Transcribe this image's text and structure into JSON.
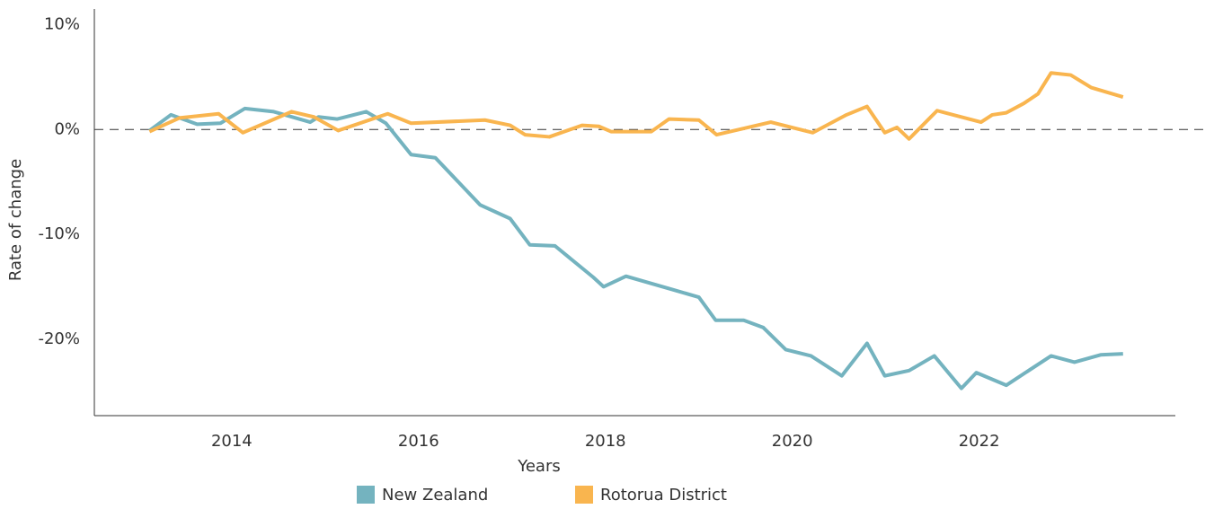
{
  "chart_data": {
    "type": "line",
    "xlabel": "Years",
    "ylabel": "Rate of change",
    "xlim": [
      2012.53,
      2024.1
    ],
    "xticks": [
      2014,
      2016,
      2018,
      2020,
      2022
    ],
    "ylim": [
      -27.3,
      11.5
    ],
    "yticks": [
      {
        "value": 10,
        "label": "10%"
      },
      {
        "value": 0,
        "label": "0%"
      },
      {
        "value": -10,
        "label": "-10%"
      },
      {
        "value": -20,
        "label": "-20%"
      }
    ],
    "zero_line": true,
    "series": [
      {
        "name": "New Zealand",
        "color": "#74b3bf",
        "x": [
          2013.12,
          2013.35,
          2013.63,
          2013.88,
          2014.14,
          2014.45,
          2014.84,
          2014.93,
          2015.13,
          2015.44,
          2015.65,
          2015.92,
          2016.18,
          2016.66,
          2016.98,
          2017.19,
          2017.46,
          2017.87,
          2017.98,
          2018.22,
          2018.73,
          2019.0,
          2019.18,
          2019.48,
          2019.69,
          2019.93,
          2020.2,
          2020.53,
          2020.8,
          2020.99,
          2021.25,
          2021.52,
          2021.81,
          2021.97,
          2022.29,
          2022.77,
          2023.02,
          2023.3,
          2023.54
        ],
        "values": [
          -0.1,
          1.4,
          0.5,
          0.6,
          2.0,
          1.7,
          0.7,
          1.2,
          1.0,
          1.7,
          0.6,
          -2.4,
          -2.7,
          -7.2,
          -8.5,
          -11.0,
          -11.1,
          -14.1,
          -15.0,
          -14.0,
          -15.3,
          -16.0,
          -18.2,
          -18.2,
          -18.9,
          -21.0,
          -21.6,
          -23.5,
          -20.4,
          -23.5,
          -23.0,
          -21.6,
          -24.7,
          -23.2,
          -24.4,
          -21.6,
          -22.2,
          -21.5,
          -21.4
        ]
      },
      {
        "name": "Rotorua District",
        "color": "#f9b54f",
        "x": [
          2013.12,
          2013.44,
          2013.86,
          2014.12,
          2014.64,
          2014.88,
          2015.14,
          2015.67,
          2015.92,
          2016.71,
          2016.98,
          2017.14,
          2017.4,
          2017.75,
          2017.93,
          2018.06,
          2018.25,
          2018.49,
          2018.68,
          2019.0,
          2019.19,
          2019.77,
          2020.22,
          2020.58,
          2020.8,
          2020.99,
          2021.12,
          2021.25,
          2021.55,
          2022.02,
          2022.14,
          2022.29,
          2022.48,
          2022.63,
          2022.77,
          2022.98,
          2023.2,
          2023.54
        ],
        "values": [
          -0.2,
          1.1,
          1.5,
          -0.3,
          1.7,
          1.2,
          -0.1,
          1.5,
          0.6,
          0.9,
          0.4,
          -0.5,
          -0.7,
          0.4,
          0.3,
          -0.2,
          -0.2,
          -0.2,
          1.0,
          0.9,
          -0.5,
          0.7,
          -0.3,
          1.4,
          2.2,
          -0.3,
          0.2,
          -0.9,
          1.8,
          0.7,
          1.4,
          1.6,
          2.5,
          3.4,
          5.4,
          5.2,
          4.0,
          3.1
        ]
      }
    ]
  }
}
